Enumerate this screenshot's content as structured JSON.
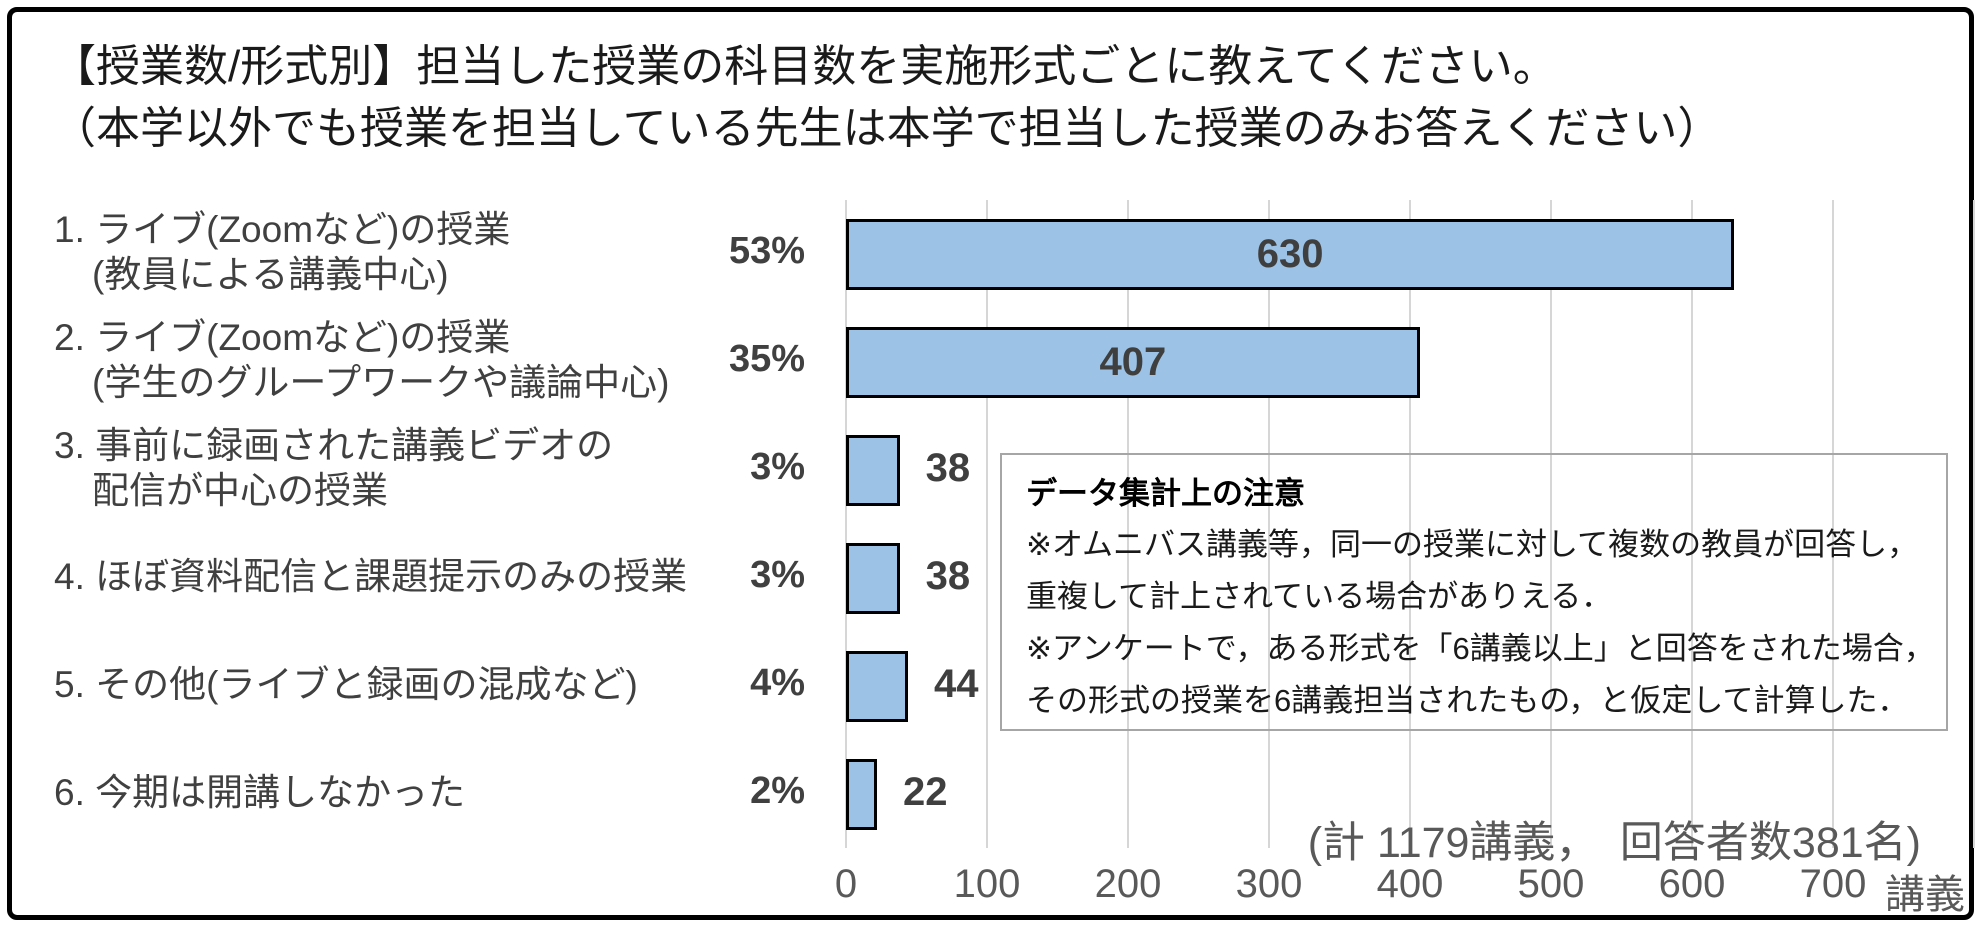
{
  "title": {
    "line1": "【授業数/形式別】担当した授業の科目数を実施形式ごとに教えてください。",
    "line2": "（本学以外でも授業を担当している先生は本学で担当した授業のみお答えください）"
  },
  "chart_data": {
    "type": "bar",
    "orientation": "horizontal",
    "categories": [
      [
        "1. ライブ(Zoomなど)の授業",
        "(教員による講義中心)"
      ],
      [
        "2. ライブ(Zoomなど)の授業",
        "(学生のグループワークや議論中心)"
      ],
      [
        "3. 事前に録画された講義ビデオの",
        "配信が中心の授業"
      ],
      [
        "4. ほぼ資料配信と課題提示のみの授業"
      ],
      [
        "5. その他(ライブと録画の混成など)"
      ],
      [
        "6. 今期は開講しなかった"
      ]
    ],
    "values": [
      630,
      407,
      38,
      38,
      44,
      22
    ],
    "percent_labels": [
      "53%",
      "35%",
      "3%",
      "3%",
      "4%",
      "2%"
    ],
    "x_ticks": [
      0,
      100,
      200,
      300,
      400,
      500,
      600,
      700
    ],
    "xlim": [
      0,
      800
    ],
    "x_unit": "講義",
    "grid": "vertical",
    "bar_color": "#9cc2e5",
    "bar_border_color": "#000000",
    "gridline_color": "#d6d6d6",
    "value_label_inside_threshold": 100
  },
  "note_box": {
    "title": "データ集計上の注意",
    "lines": [
      "※オムニバス講義等，同一の授業に対して複数の教員が回答し，",
      "重複して計上されている場合がありえる．",
      "※アンケートで，ある形式を「6講義以上」と回答をされた場合，",
      "その形式の授業を6講義担当されたもの，と仮定して計算した．"
    ]
  },
  "total_label": "(計 1179講義，　回答者数381名)"
}
